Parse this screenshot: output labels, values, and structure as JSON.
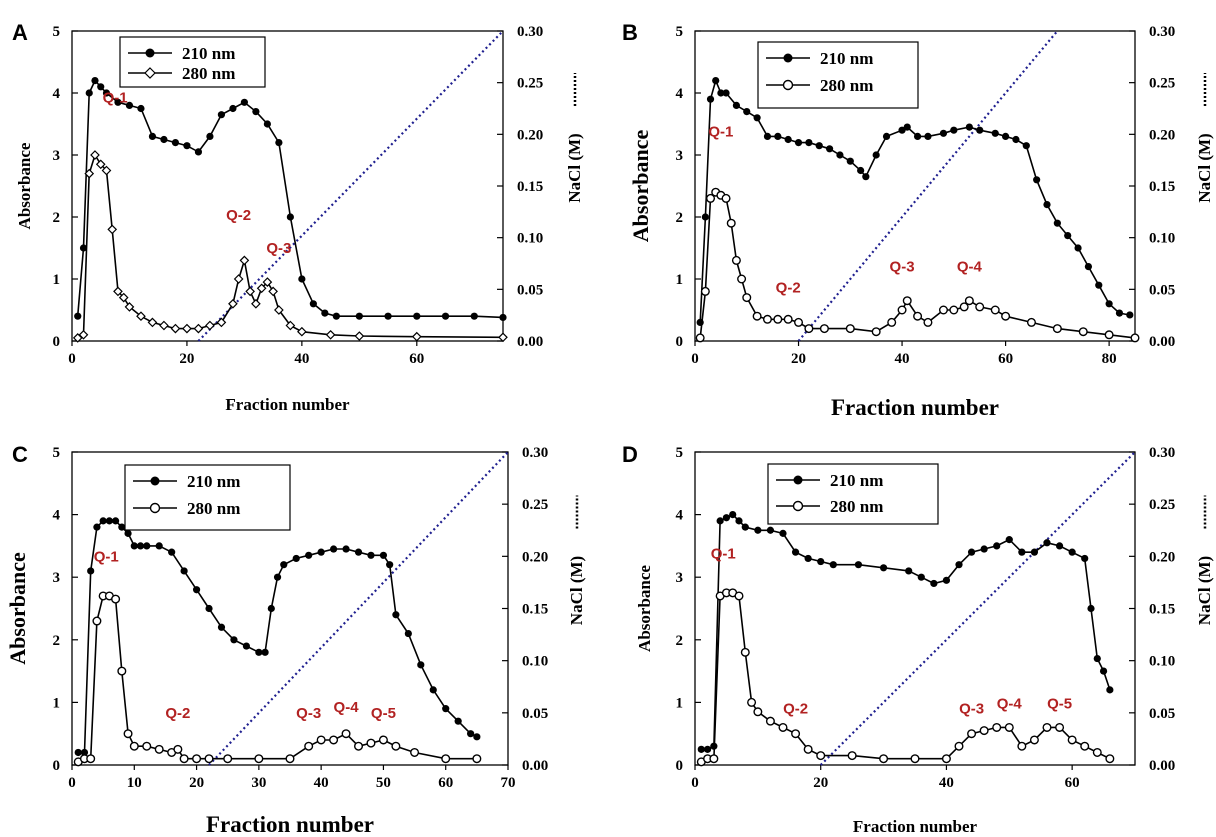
{
  "figure_labels": [
    "A",
    "B",
    "C",
    "D"
  ],
  "colors": {
    "series_210": "#000000",
    "series_280": "#000000",
    "gradient_line": "#1f1f8f",
    "annotation": "#b22222"
  },
  "chart_data": [
    {
      "panel": "A",
      "type": "line",
      "xlabel": "Fraction number",
      "ylabel": "Absorbance",
      "y2label": "NaCl (M)",
      "xlim": [
        0,
        75
      ],
      "xticks": [
        0,
        20,
        40,
        60
      ],
      "ylim": [
        0,
        5
      ],
      "yticks": [
        0,
        1,
        2,
        3,
        4,
        5
      ],
      "y2lim": [
        0,
        0.3
      ],
      "y2ticks": [
        "0.00",
        "0.05",
        "0.10",
        "0.15",
        "0.20",
        "0.25",
        "0.30"
      ],
      "legend": {
        "position": "top-left",
        "entries": [
          "210 nm",
          "280 nm"
        ]
      },
      "series": [
        {
          "name": "210 nm",
          "marker": "filled-circle",
          "x": [
            1,
            2,
            3,
            4,
            5,
            6,
            8,
            10,
            12,
            14,
            16,
            18,
            20,
            22,
            24,
            26,
            28,
            30,
            32,
            34,
            36,
            38,
            40,
            42,
            44,
            46,
            50,
            55,
            60,
            65,
            70,
            75
          ],
          "y": [
            0.4,
            1.5,
            4.0,
            4.2,
            4.1,
            4.0,
            3.85,
            3.8,
            3.75,
            3.3,
            3.25,
            3.2,
            3.15,
            3.05,
            3.3,
            3.65,
            3.75,
            3.85,
            3.7,
            3.5,
            3.2,
            2.0,
            1.0,
            0.6,
            0.45,
            0.4,
            0.4,
            0.4,
            0.4,
            0.4,
            0.4,
            0.38
          ]
        },
        {
          "name": "280 nm",
          "marker": "open-diamond",
          "x": [
            1,
            2,
            3,
            4,
            5,
            6,
            7,
            8,
            9,
            10,
            12,
            14,
            16,
            18,
            20,
            22,
            24,
            26,
            28,
            29,
            30,
            31,
            32,
            33,
            34,
            35,
            36,
            38,
            40,
            45,
            50,
            60,
            75
          ],
          "y": [
            0.05,
            0.1,
            2.7,
            3.0,
            2.85,
            2.75,
            1.8,
            0.8,
            0.7,
            0.55,
            0.4,
            0.3,
            0.25,
            0.2,
            0.2,
            0.2,
            0.25,
            0.3,
            0.6,
            1.0,
            1.3,
            0.8,
            0.6,
            0.85,
            0.95,
            0.8,
            0.5,
            0.25,
            0.15,
            0.1,
            0.08,
            0.07,
            0.06
          ]
        }
      ],
      "gradient": {
        "x": [
          22,
          75
        ],
        "y2": [
          0,
          0.3
        ]
      },
      "annotations": [
        {
          "text": "Q-1",
          "x": 7.5,
          "y": 3.85
        },
        {
          "text": "Q-2",
          "x": 29,
          "y": 1.95
        },
        {
          "text": "Q-3",
          "x": 36,
          "y": 1.42
        }
      ]
    },
    {
      "panel": "B",
      "type": "line",
      "xlabel": "Fraction number",
      "ylabel": "Absorbance",
      "y2label": "NaCl (M)",
      "xlim": [
        0,
        85
      ],
      "xticks": [
        0,
        20,
        40,
        60,
        80
      ],
      "ylim": [
        0,
        5
      ],
      "yticks": [
        0,
        1,
        2,
        3,
        4,
        5
      ],
      "y2lim": [
        0,
        0.3
      ],
      "y2ticks": [
        "0.00",
        "0.05",
        "0.10",
        "0.15",
        "0.20",
        "0.25",
        "0.30"
      ],
      "legend": {
        "position": "top-left",
        "entries": [
          "210 nm",
          "280 nm"
        ]
      },
      "series": [
        {
          "name": "210 nm",
          "marker": "filled-circle",
          "x": [
            1,
            2,
            3,
            4,
            5,
            6,
            8,
            10,
            12,
            14,
            16,
            18,
            20,
            22,
            24,
            26,
            28,
            30,
            32,
            33,
            35,
            37,
            40,
            41,
            43,
            45,
            48,
            50,
            53,
            55,
            58,
            60,
            62,
            64,
            66,
            68,
            70,
            72,
            74,
            76,
            78,
            80,
            82,
            84
          ],
          "y": [
            0.3,
            2.0,
            3.9,
            4.2,
            4.0,
            4.0,
            3.8,
            3.7,
            3.6,
            3.3,
            3.3,
            3.25,
            3.2,
            3.2,
            3.15,
            3.1,
            3.0,
            2.9,
            2.75,
            2.65,
            3.0,
            3.3,
            3.4,
            3.45,
            3.3,
            3.3,
            3.35,
            3.4,
            3.45,
            3.4,
            3.35,
            3.3,
            3.25,
            3.15,
            2.6,
            2.2,
            1.9,
            1.7,
            1.5,
            1.2,
            0.9,
            0.6,
            0.45,
            0.42
          ]
        },
        {
          "name": "280 nm",
          "marker": "open-circle",
          "x": [
            1,
            2,
            3,
            4,
            5,
            6,
            7,
            8,
            9,
            10,
            12,
            14,
            16,
            18,
            20,
            22,
            25,
            30,
            35,
            38,
            40,
            41,
            43,
            45,
            48,
            50,
            52,
            53,
            55,
            58,
            60,
            65,
            70,
            75,
            80,
            85
          ],
          "y": [
            0.05,
            0.8,
            2.3,
            2.4,
            2.35,
            2.3,
            1.9,
            1.3,
            1.0,
            0.7,
            0.4,
            0.35,
            0.35,
            0.35,
            0.3,
            0.2,
            0.2,
            0.2,
            0.15,
            0.3,
            0.5,
            0.65,
            0.4,
            0.3,
            0.5,
            0.5,
            0.55,
            0.65,
            0.55,
            0.5,
            0.4,
            0.3,
            0.2,
            0.15,
            0.1,
            0.05
          ]
        }
      ],
      "gradient": {
        "x": [
          20,
          70
        ],
        "y2": [
          0,
          0.3
        ]
      },
      "annotations": [
        {
          "text": "Q-1",
          "x": 5,
          "y": 3.3
        },
        {
          "text": "Q-2",
          "x": 18,
          "y": 0.78
        },
        {
          "text": "Q-3",
          "x": 40,
          "y": 1.12
        },
        {
          "text": "Q-4",
          "x": 53,
          "y": 1.12
        }
      ]
    },
    {
      "panel": "C",
      "type": "line",
      "xlabel": "Fraction number",
      "ylabel": "Absorbance",
      "y2label": "NaCl (M)",
      "xlim": [
        0,
        70
      ],
      "xticks": [
        0,
        10,
        20,
        30,
        40,
        50,
        60,
        70
      ],
      "ylim": [
        0,
        5
      ],
      "yticks": [
        0,
        1,
        2,
        3,
        4,
        5
      ],
      "y2lim": [
        0,
        0.3
      ],
      "y2ticks": [
        "0.00",
        "0.05",
        "0.10",
        "0.15",
        "0.20",
        "0.25",
        "0.30"
      ],
      "legend": {
        "position": "top-left",
        "entries": [
          "210 nm",
          "280 nm"
        ]
      },
      "series": [
        {
          "name": "210 nm",
          "marker": "filled-circle",
          "x": [
            1,
            2,
            3,
            4,
            5,
            6,
            7,
            8,
            9,
            10,
            11,
            12,
            14,
            16,
            18,
            20,
            22,
            24,
            26,
            28,
            30,
            31,
            32,
            33,
            34,
            36,
            38,
            40,
            42,
            44,
            46,
            48,
            50,
            51,
            52,
            54,
            56,
            58,
            60,
            62,
            64,
            65
          ],
          "y": [
            0.2,
            0.2,
            3.1,
            3.8,
            3.9,
            3.9,
            3.9,
            3.8,
            3.7,
            3.5,
            3.5,
            3.5,
            3.5,
            3.4,
            3.1,
            2.8,
            2.5,
            2.2,
            2.0,
            1.9,
            1.8,
            1.8,
            2.5,
            3.0,
            3.2,
            3.3,
            3.35,
            3.4,
            3.45,
            3.45,
            3.4,
            3.35,
            3.35,
            3.2,
            2.4,
            2.1,
            1.6,
            1.2,
            0.9,
            0.7,
            0.5,
            0.45
          ]
        },
        {
          "name": "280 nm",
          "marker": "open-circle",
          "x": [
            1,
            2,
            3,
            4,
            5,
            6,
            7,
            8,
            9,
            10,
            12,
            14,
            16,
            17,
            18,
            20,
            22,
            25,
            30,
            35,
            38,
            40,
            42,
            44,
            46,
            48,
            50,
            52,
            55,
            60,
            65
          ],
          "y": [
            0.05,
            0.1,
            0.1,
            2.3,
            2.7,
            2.7,
            2.65,
            1.5,
            0.5,
            0.3,
            0.3,
            0.25,
            0.2,
            0.25,
            0.1,
            0.1,
            0.1,
            0.1,
            0.1,
            0.1,
            0.3,
            0.4,
            0.4,
            0.5,
            0.3,
            0.35,
            0.4,
            0.3,
            0.2,
            0.1,
            0.1
          ]
        }
      ],
      "gradient": {
        "x": [
          22,
          70
        ],
        "y2": [
          0,
          0.3
        ]
      },
      "annotations": [
        {
          "text": "Q-1",
          "x": 5.5,
          "y": 3.25
        },
        {
          "text": "Q-2",
          "x": 17,
          "y": 0.75
        },
        {
          "text": "Q-3",
          "x": 38,
          "y": 0.75
        },
        {
          "text": "Q-4",
          "x": 44,
          "y": 0.85
        },
        {
          "text": "Q-5",
          "x": 50,
          "y": 0.75
        }
      ]
    },
    {
      "panel": "D",
      "type": "line",
      "xlabel": "Fraction number",
      "ylabel": "Absorbance",
      "y2label": "NaCl (M)",
      "xlim": [
        0,
        70
      ],
      "xticks": [
        0,
        20,
        40,
        60
      ],
      "ylim": [
        0,
        5
      ],
      "yticks": [
        0,
        1,
        2,
        3,
        4,
        5
      ],
      "y2lim": [
        0,
        0.3
      ],
      "y2ticks": [
        "0.00",
        "0.05",
        "0.10",
        "0.15",
        "0.20",
        "0.25",
        "0.30"
      ],
      "legend": {
        "position": "top-left",
        "entries": [
          "210 nm",
          "280 nm"
        ]
      },
      "series": [
        {
          "name": "210 nm",
          "marker": "filled-circle",
          "x": [
            1,
            2,
            3,
            4,
            5,
            6,
            7,
            8,
            10,
            12,
            14,
            16,
            18,
            20,
            22,
            26,
            30,
            34,
            36,
            38,
            40,
            42,
            44,
            46,
            48,
            50,
            52,
            54,
            56,
            58,
            60,
            62,
            63,
            64,
            65,
            66
          ],
          "y": [
            0.25,
            0.25,
            0.3,
            3.9,
            3.95,
            4.0,
            3.9,
            3.8,
            3.75,
            3.75,
            3.7,
            3.4,
            3.3,
            3.25,
            3.2,
            3.2,
            3.15,
            3.1,
            3.0,
            2.9,
            2.95,
            3.2,
            3.4,
            3.45,
            3.5,
            3.6,
            3.4,
            3.4,
            3.55,
            3.5,
            3.4,
            3.3,
            2.5,
            1.7,
            1.5,
            1.2
          ]
        },
        {
          "name": "280 nm",
          "marker": "open-circle",
          "x": [
            1,
            2,
            3,
            4,
            5,
            6,
            7,
            8,
            9,
            10,
            12,
            14,
            16,
            18,
            20,
            25,
            30,
            35,
            40,
            42,
            44,
            46,
            48,
            50,
            52,
            54,
            56,
            58,
            60,
            62,
            64,
            66
          ],
          "y": [
            0.05,
            0.1,
            0.1,
            2.7,
            2.75,
            2.75,
            2.7,
            1.8,
            1.0,
            0.85,
            0.7,
            0.6,
            0.5,
            0.25,
            0.15,
            0.15,
            0.1,
            0.1,
            0.1,
            0.3,
            0.5,
            0.55,
            0.6,
            0.6,
            0.3,
            0.4,
            0.6,
            0.6,
            0.4,
            0.3,
            0.2,
            0.1
          ]
        }
      ],
      "gradient": {
        "x": [
          20,
          70
        ],
        "y2": [
          0,
          0.3
        ]
      },
      "annotations": [
        {
          "text": "Q-1",
          "x": 4.5,
          "y": 3.3
        },
        {
          "text": "Q-2",
          "x": 16,
          "y": 0.82
        },
        {
          "text": "Q-3",
          "x": 44,
          "y": 0.82
        },
        {
          "text": "Q-4",
          "x": 50,
          "y": 0.9
        },
        {
          "text": "Q-5",
          "x": 58,
          "y": 0.9
        }
      ]
    }
  ]
}
